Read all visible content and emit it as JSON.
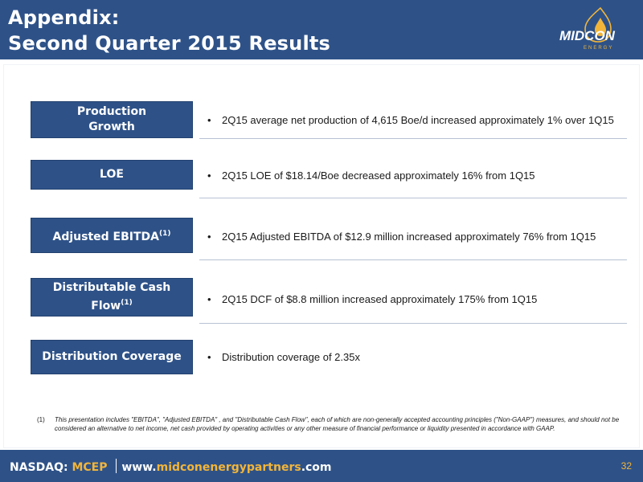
{
  "header": {
    "title_line1": "Appendix:",
    "title_line2": "Second Quarter 2015 Results",
    "logo": {
      "text": "MIDCON",
      "subtext": "ENERGY"
    }
  },
  "rows": [
    {
      "label": "Production Growth",
      "text": "2Q15 average net production of 4,615 Boe/d increased approximately 1% over 1Q15"
    },
    {
      "label": "LOE",
      "text": "2Q15 LOE of $18.14/Boe decreased approximately 16% from 1Q15"
    },
    {
      "label": "Adjusted EBITDA",
      "label_sup": "(1)",
      "text": "2Q15 Adjusted EBITDA of $12.9 million increased approximately 76% from 1Q15"
    },
    {
      "label_line1": "Distributable Cash",
      "label_line2": "Flow",
      "label_sup": "(1)",
      "text": "2Q15 DCF of $8.8 million increased approximately 175% from 1Q15"
    },
    {
      "label": "Distribution Coverage",
      "text": "Distribution coverage of 2.35x"
    }
  ],
  "bullet_char": "•",
  "footnote": {
    "number": "(1)",
    "text": "This presentation includes \"EBITDA\", \"Adjusted EBITDA\" , and \"Distributable Cash Flow\", each of which are non-generally accepted accounting principles (\"Non-GAAP\") measures, and should not be considered an alternative to net income, net cash provided by operating activities or any other measure of financial performance or liquidity presented in accordance with GAAP."
  },
  "footer": {
    "exchange_label": "NASDAQ:",
    "ticker": "MCEP",
    "url_prefix": "www.",
    "url_domain": "midconenergypartners",
    "url_suffix": ".com",
    "page_number": "32"
  },
  "colors": {
    "brand_blue": "#2e5288",
    "accent_gold": "#f2b53a"
  }
}
